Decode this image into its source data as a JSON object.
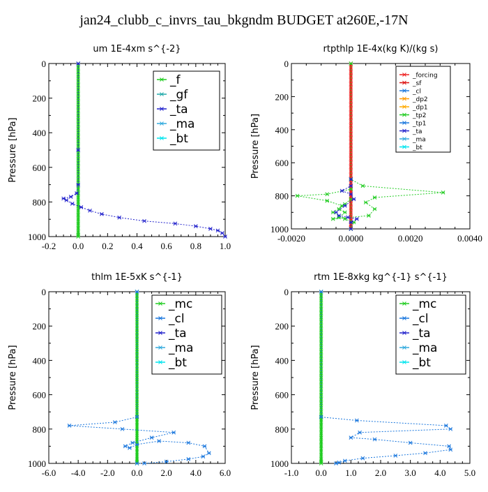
{
  "page_title": "jan24_clubb_c_invrs_tau_bkgndm  BUDGET at260E,-17N",
  "colors": {
    "_f": "#22cc22",
    "_gf": "#22aaaa",
    "_ta": "#2222cc",
    "_ma": "#33aadd",
    "_bt": "#00e5ee",
    "_mc": "#22cc22",
    "_cl": "#1a77dd",
    "_forcing": "#ee2222",
    "_sf": "#dd1111",
    "_dp2": "#ff9900",
    "_dp1": "#ffaa00",
    "_tp2": "#22cc22",
    "_tp1": "#1a77dd"
  },
  "chart_data": [
    {
      "type": "line",
      "title": "um   1E-4xm s^{-2}",
      "ylabel": "Pressure [hPa]",
      "xlim": [
        -0.2,
        1.0
      ],
      "ylim": [
        1000,
        0
      ],
      "xticks": [
        "-0.2",
        "0.0",
        "0.2",
        "0.4",
        "0.6",
        "0.8",
        "1.0"
      ],
      "yticks": [
        "0",
        "200",
        "400",
        "600",
        "800",
        "1000"
      ],
      "legend": [
        "_f",
        "_gf",
        "_ta",
        "_ma",
        "_bt"
      ],
      "legend_position": "top-right",
      "series": [
        {
          "name": "_f",
          "x": [
            0,
            0,
            0,
            0,
            0,
            0,
            0,
            0,
            0,
            0,
            0,
            0,
            0,
            0,
            0,
            0,
            0,
            0,
            0,
            0,
            0,
            0,
            0,
            0,
            0,
            0,
            0,
            0,
            0,
            0,
            0,
            0,
            0,
            0,
            0,
            0,
            0,
            0,
            0,
            0,
            0,
            0
          ],
          "y": [
            0,
            25,
            50,
            75,
            100,
            125,
            150,
            175,
            200,
            225,
            250,
            275,
            300,
            325,
            350,
            375,
            400,
            425,
            450,
            475,
            500,
            525,
            550,
            575,
            600,
            625,
            650,
            675,
            700,
            725,
            750,
            775,
            800,
            825,
            850,
            875,
            900,
            925,
            950,
            975,
            990,
            1000
          ]
        },
        {
          "name": "_ta",
          "x": [
            0,
            0,
            0,
            -0.01,
            -0.05,
            -0.1,
            -0.08,
            -0.04,
            0.02,
            0.08,
            0.16,
            0.28,
            0.45,
            0.66,
            0.8,
            0.9,
            0.95,
            0.98,
            1.0
          ],
          "y": [
            0,
            500,
            700,
            750,
            770,
            780,
            790,
            810,
            830,
            850,
            870,
            890,
            910,
            925,
            940,
            955,
            965,
            980,
            1000
          ]
        }
      ]
    },
    {
      "type": "line",
      "title": "rtpthlp   1E-4x(kg K)/(kg s)",
      "ylabel": "Pressure [hPa]",
      "xlim": [
        -0.002,
        0.004
      ],
      "ylim": [
        1000,
        0
      ],
      "xticks": [
        "-0.0020",
        "0.0000",
        "0.0020",
        "0.0040"
      ],
      "yticks": [
        "0",
        "200",
        "400",
        "600",
        "800",
        "1000"
      ],
      "legend": [
        "_forcing",
        "_sf",
        "_cl",
        "_dp2",
        "_dp1",
        "_tp2",
        "_tp1",
        "_ta",
        "_ma",
        "_bt"
      ],
      "legend_position": "top-right",
      "series": [
        {
          "name": "_forcing",
          "x": [
            0,
            0,
            0,
            0,
            0,
            0,
            0,
            0,
            0,
            0,
            0,
            0,
            0,
            0,
            0,
            0,
            0,
            0,
            0,
            0,
            0,
            0,
            0,
            0,
            0,
            0,
            0,
            0,
            0,
            0,
            0,
            0,
            0,
            0,
            0,
            0,
            0,
            0,
            0,
            0,
            0,
            0
          ],
          "y": [
            0,
            25,
            50,
            75,
            100,
            125,
            150,
            175,
            200,
            225,
            250,
            275,
            300,
            325,
            350,
            375,
            400,
            425,
            450,
            475,
            500,
            525,
            550,
            575,
            600,
            625,
            650,
            675,
            700,
            725,
            750,
            775,
            800,
            825,
            850,
            875,
            900,
            925,
            950,
            975,
            990,
            1000
          ]
        },
        {
          "name": "_tp2",
          "x": [
            0,
            0,
            0.0004,
            0.0031,
            0.0008,
            0.0005,
            0.0008,
            0.0006,
            -0.0006,
            -0.0004,
            -0.0002,
            -0.0004,
            -0.0002,
            0,
            0
          ],
          "y": [
            0,
            700,
            740,
            780,
            810,
            840,
            880,
            920,
            940,
            930,
            900,
            880,
            850,
            820,
            1000
          ]
        },
        {
          "name": "_tp2",
          "x": [
            0,
            0,
            -0.0008,
            -0.0018,
            -0.0008,
            -0.0003,
            -0.0006,
            -0.0002,
            0.0001,
            0
          ],
          "y": [
            700,
            760,
            790,
            800,
            830,
            860,
            900,
            940,
            960,
            1000
          ]
        },
        {
          "name": "_ta",
          "x": [
            0,
            0,
            -0.0003,
            0,
            0.0001,
            -0.0002,
            -0.0005,
            -0.0004,
            -0.0001,
            0.0002,
            0,
            0
          ],
          "y": [
            700,
            740,
            770,
            790,
            820,
            860,
            900,
            920,
            930,
            940,
            960,
            1000
          ]
        }
      ]
    },
    {
      "type": "line",
      "title": "thlm   1E-5xK s^{-1}",
      "ylabel": "Pressure [hPa]",
      "xlim": [
        -6.0,
        6.0
      ],
      "ylim": [
        1000,
        0
      ],
      "xticks": [
        "-6.0",
        "-4.0",
        "-2.0",
        "0.0",
        "2.0",
        "4.0",
        "6.0"
      ],
      "yticks": [
        "0",
        "200",
        "400",
        "600",
        "800",
        "1000"
      ],
      "legend": [
        "_mc",
        "_cl",
        "_ta",
        "_ma",
        "_bt"
      ],
      "legend_position": "top-right",
      "series": [
        {
          "name": "_mc",
          "x": [
            0,
            0,
            0,
            0,
            0,
            0,
            0,
            0,
            0,
            0,
            0,
            0,
            0,
            0,
            0,
            0,
            0,
            0,
            0,
            0,
            0,
            0,
            0,
            0,
            0,
            0,
            0,
            0,
            0,
            0,
            0,
            0,
            0,
            0,
            0,
            0,
            0,
            0,
            0,
            0,
            0,
            0
          ],
          "y": [
            0,
            25,
            50,
            75,
            100,
            125,
            150,
            175,
            200,
            225,
            250,
            275,
            300,
            325,
            350,
            375,
            400,
            425,
            450,
            475,
            500,
            525,
            550,
            575,
            600,
            625,
            650,
            675,
            700,
            725,
            750,
            775,
            800,
            825,
            850,
            875,
            900,
            925,
            950,
            975,
            990,
            1000
          ]
        },
        {
          "name": "_cl",
          "x": [
            0,
            0,
            -1.5,
            -4.6,
            -1.0,
            2.5,
            1.0,
            -0.3,
            -0.8,
            -0.5,
            0,
            1.5,
            3.5,
            4.6,
            4.9,
            4.5,
            3.5,
            2.0,
            0.5,
            0
          ],
          "y": [
            0,
            730,
            760,
            780,
            800,
            820,
            850,
            880,
            900,
            910,
            890,
            870,
            880,
            900,
            940,
            960,
            975,
            990,
            1000,
            1000
          ]
        }
      ]
    },
    {
      "type": "line",
      "title": "rtm   1E-8xkg kg^{-1} s^{-1}",
      "ylabel": "Pressure [hPa]",
      "xlim": [
        -1.0,
        5.0
      ],
      "ylim": [
        1000,
        0
      ],
      "xticks": [
        "-1.0",
        "0.0",
        "1.0",
        "2.0",
        "3.0",
        "4.0",
        "5.0"
      ],
      "yticks": [
        "0",
        "200",
        "400",
        "600",
        "800",
        "1000"
      ],
      "legend": [
        "_mc",
        "_cl",
        "_ta",
        "_ma",
        "_bt"
      ],
      "legend_position": "top-right",
      "series": [
        {
          "name": "_mc",
          "x": [
            0,
            0,
            0,
            0,
            0,
            0,
            0,
            0,
            0,
            0,
            0,
            0,
            0,
            0,
            0,
            0,
            0,
            0,
            0,
            0,
            0,
            0,
            0,
            0,
            0,
            0,
            0,
            0,
            0,
            0,
            0,
            0,
            0,
            0,
            0,
            0,
            0,
            0,
            0,
            0,
            0,
            0
          ],
          "y": [
            0,
            25,
            50,
            75,
            100,
            125,
            150,
            175,
            200,
            225,
            250,
            275,
            300,
            325,
            350,
            375,
            400,
            425,
            450,
            475,
            500,
            525,
            550,
            575,
            600,
            625,
            650,
            675,
            700,
            725,
            750,
            775,
            800,
            825,
            850,
            875,
            900,
            925,
            950,
            975,
            990,
            1000
          ]
        },
        {
          "name": "_cl",
          "x": [
            0,
            0,
            1.2,
            4.2,
            4.35,
            1.3,
            1.0,
            1.8,
            3.0,
            4.3,
            4.35,
            3.5,
            2.5,
            1.4,
            0.8,
            0.6,
            0.5
          ],
          "y": [
            0,
            730,
            750,
            780,
            800,
            820,
            850,
            860,
            880,
            900,
            920,
            940,
            955,
            970,
            985,
            995,
            1000
          ]
        }
      ]
    }
  ]
}
